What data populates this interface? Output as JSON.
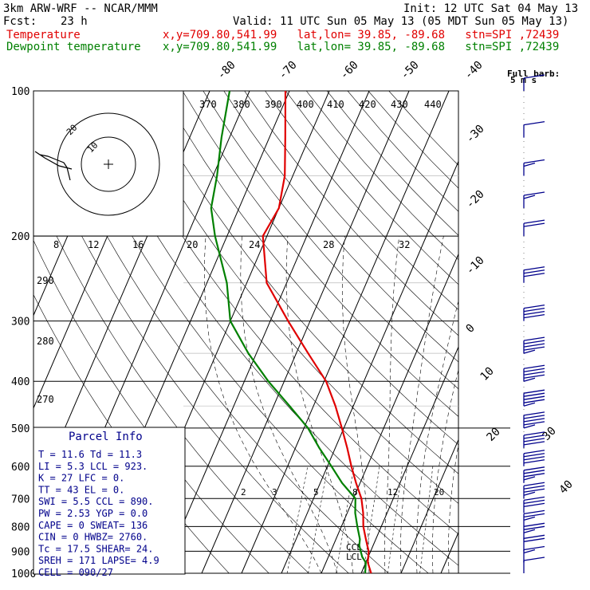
{
  "header": {
    "model": "3km ARW-WRF -- NCAR/MMM",
    "fcst_label": "Fcst:",
    "fcst_hours": "23 h",
    "init": "Init: 12 UTC Sat 04 May 13",
    "valid": "Valid: 11 UTC Sun 05 May 13 (05 MDT Sun 05 May 13)",
    "temp_label": "Temperature",
    "dew_label": "Dewpoint temperature",
    "loc": "x,y=709.80,541.99   lat,lon= 39.85, -89.68   stn=SPI ,72439"
  },
  "colors": {
    "temperature": "#e00000",
    "dewpoint": "#008000",
    "parcel_box": "#00008b",
    "background": "#ffffff"
  },
  "chart_data": {
    "type": "skew-t log-p sounding",
    "pressure_levels": [
      "100",
      "200",
      "300",
      "400",
      "500",
      "600",
      "700",
      "800",
      "900",
      "1000"
    ],
    "isotherm_labels": [
      "-80",
      "-70",
      "-60",
      "-50",
      "-40",
      "-30",
      "-20",
      "-10",
      "0",
      "10",
      "20",
      "30",
      "40"
    ],
    "theta_labels": [
      "370",
      "380",
      "390",
      "400",
      "410",
      "420",
      "430",
      "440"
    ],
    "pw_labels": [
      "8",
      "12",
      "16",
      "20",
      "24",
      "28",
      "32"
    ],
    "pw_unit": "kts",
    "theta_side_labels": [
      "290",
      "280",
      "270"
    ],
    "mixing_ratio_labels": [
      "2",
      "3",
      "5",
      "8",
      "12",
      "20"
    ],
    "series": [
      {
        "name": "Temperature",
        "points": [
          [
            1000,
            12.5
          ],
          [
            975,
            11.5
          ],
          [
            950,
            10.5
          ],
          [
            925,
            10.0
          ],
          [
            900,
            9.5
          ],
          [
            875,
            8.5
          ],
          [
            850,
            7.5
          ],
          [
            800,
            5.5
          ],
          [
            750,
            4.0
          ],
          [
            700,
            2.0
          ],
          [
            650,
            -1.0
          ],
          [
            600,
            -4.0
          ],
          [
            550,
            -7.0
          ],
          [
            500,
            -10.5
          ],
          [
            450,
            -14.5
          ],
          [
            400,
            -19.5
          ],
          [
            350,
            -27.0
          ],
          [
            300,
            -35.5
          ],
          [
            250,
            -45.0
          ],
          [
            200,
            -51.0
          ],
          [
            175,
            -50.0
          ],
          [
            150,
            -52.0
          ],
          [
            125,
            -56.0
          ],
          [
            100,
            -61.0
          ]
        ]
      },
      {
        "name": "Dewpoint temperature",
        "points": [
          [
            1000,
            11.0
          ],
          [
            975,
            10.5
          ],
          [
            950,
            10.0
          ],
          [
            925,
            8.5
          ],
          [
            900,
            7.5
          ],
          [
            875,
            6.5
          ],
          [
            850,
            6.0
          ],
          [
            800,
            4.0
          ],
          [
            750,
            2.0
          ],
          [
            700,
            0.5
          ],
          [
            650,
            -4.5
          ],
          [
            600,
            -9.0
          ],
          [
            550,
            -14.0
          ],
          [
            500,
            -19.0
          ],
          [
            450,
            -26.0
          ],
          [
            400,
            -34.0
          ],
          [
            350,
            -42.0
          ],
          [
            300,
            -50.0
          ],
          [
            250,
            -55.0
          ],
          [
            200,
            -63.0
          ],
          [
            175,
            -67.0
          ],
          [
            150,
            -69.0
          ],
          [
            125,
            -72.0
          ],
          [
            100,
            -75.0
          ]
        ]
      }
    ],
    "winds": [
      {
        "p": 1000,
        "speed": 10
      },
      {
        "p": 950,
        "speed": 15
      },
      {
        "p": 900,
        "speed": 20
      },
      {
        "p": 850,
        "speed": 25
      },
      {
        "p": 800,
        "speed": 25
      },
      {
        "p": 750,
        "speed": 30
      },
      {
        "p": 700,
        "speed": 35
      },
      {
        "p": 650,
        "speed": 35
      },
      {
        "p": 600,
        "speed": 40
      },
      {
        "p": 550,
        "speed": 40
      },
      {
        "p": 500,
        "speed": 45
      },
      {
        "p": 450,
        "speed": 45
      },
      {
        "p": 400,
        "speed": 45
      },
      {
        "p": 350,
        "speed": 45
      },
      {
        "p": 300,
        "speed": 40
      },
      {
        "p": 250,
        "speed": 30
      },
      {
        "p": 200,
        "speed": 20
      },
      {
        "p": 175,
        "speed": 15
      },
      {
        "p": 150,
        "speed": 15
      },
      {
        "p": 125,
        "speed": 10
      },
      {
        "p": 100,
        "speed": 10
      }
    ],
    "hodograph": {
      "ring_labels": [
        "20",
        "10"
      ]
    },
    "annotations": {
      "lcl": "LCL",
      "ccl": "CCL",
      "full_barb": "Full barb:",
      "full_barb_value": "5 m s"
    }
  },
  "parcel_info": {
    "title": "Parcel Info",
    "rows": [
      "T  =   11.6  Td =  11.3",
      "LI =    5.3  LCL =  923.",
      "K  =     27  LFC =    0.",
      "TT =     43  EL  =    0.",
      "SWI =   5.5  CCL =  890.",
      "PW =   2.53  YGP =   0.0",
      "CAPE =    0  SWEAT=  136",
      "CIN =     0  HWBZ= 2760.",
      "Tc =   17.5  SHEAR=  24.",
      "SREH =  171  LAPSE=  4.9",
      "CELL = 090/27"
    ]
  }
}
